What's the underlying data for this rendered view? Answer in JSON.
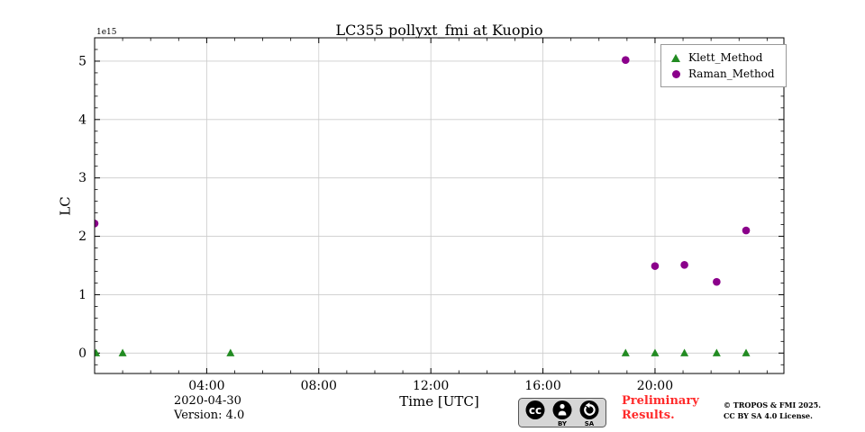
{
  "page": {
    "title": "LC355 pollyxt_fmi at Kuopio"
  },
  "chart_data": {
    "type": "scatter",
    "title": "LC355 pollyxt_fmi at Kuopio",
    "xlabel": "Time [UTC]",
    "ylabel": "LC",
    "y_scale_label": "1e15",
    "xlim": [
      0,
      24.6
    ],
    "ylim": [
      -0.35,
      5.4
    ],
    "x_ticks": {
      "values": [
        4,
        8,
        12,
        16,
        20
      ],
      "labels": [
        "04:00",
        "08:00",
        "12:00",
        "16:00",
        "20:00"
      ]
    },
    "y_ticks": {
      "values": [
        0,
        1,
        2,
        3,
        4,
        5
      ],
      "labels": [
        "0",
        "1",
        "2",
        "3",
        "4",
        "5"
      ]
    },
    "x_minor_step": 1,
    "y_minor_step": 0.2,
    "grid": true,
    "grid_color": "#cccccc",
    "axis_color": "#000000",
    "legend_position": "upper right",
    "series": [
      {
        "name": "Klett_Method",
        "marker": "triangle",
        "color": "#228B22",
        "x_hours_utc": [
          0.05,
          1.0,
          4.85,
          18.95,
          20.0,
          21.05,
          22.2,
          23.25
        ],
        "y_1e15": [
          0,
          0,
          0,
          0,
          0,
          0,
          0,
          0
        ]
      },
      {
        "name": "Raman_Method",
        "marker": "circle",
        "color": "#8B008B",
        "x_hours_utc": [
          0.0,
          18.95,
          20.0,
          21.05,
          22.2,
          23.25
        ],
        "y_1e15": [
          2.22,
          5.02,
          1.49,
          1.51,
          1.22,
          2.1
        ]
      }
    ]
  },
  "footer": {
    "date": "2020-04-30",
    "version": "Version: 4.0",
    "preliminary": [
      "Preliminary",
      "Results."
    ],
    "preliminary_color": "#ff2a2a",
    "badge_labels": {
      "cc": "cc",
      "by": "BY",
      "sa": "SA"
    },
    "copyright": [
      "© TROPOS & FMI 2025.",
      "CC BY SA 4.0 License."
    ]
  }
}
